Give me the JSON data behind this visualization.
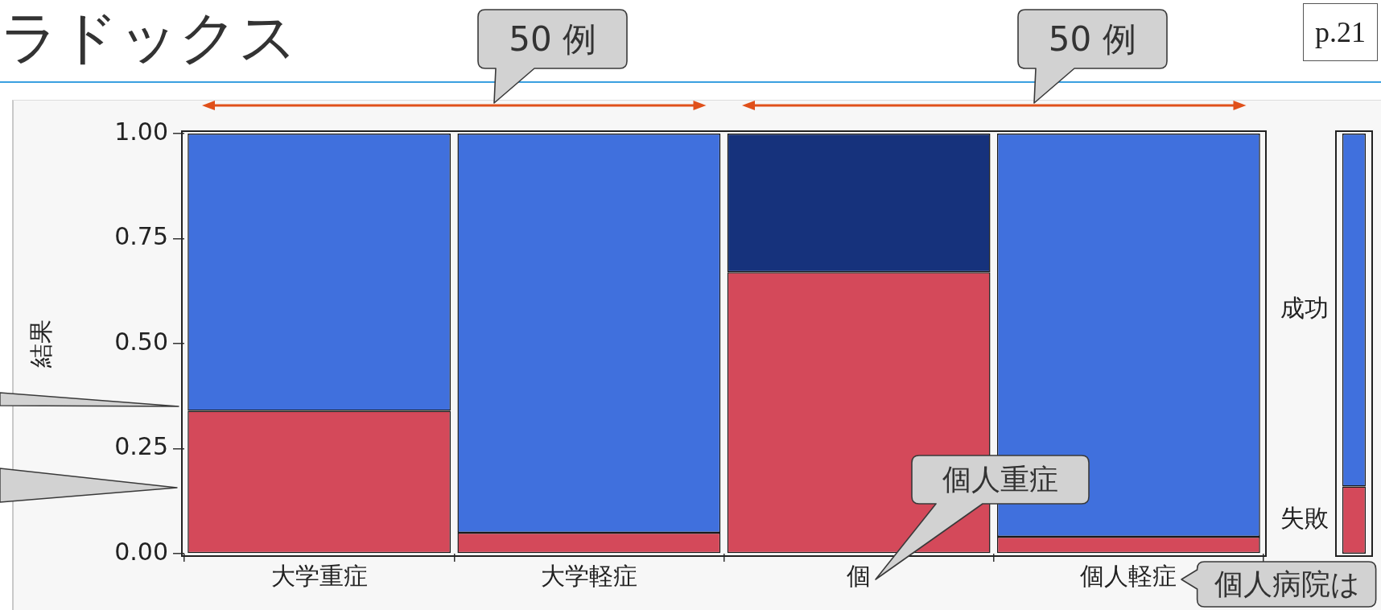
{
  "chart_data": [
    {
      "type": "bar",
      "title": "ラドックス",
      "ylabel": "結果",
      "stacked": true,
      "categories": [
        "大学重症",
        "大学軽症",
        "個",
        "個人軽症"
      ],
      "series": [
        {
          "color": "#d4495a",
          "values": [
            0.34,
            0.05,
            0.67,
            0.04
          ]
        },
        {
          "colors": [
            "#4070dd",
            "#4070dd",
            "#16327c",
            "#4070dd"
          ],
          "values": [
            0.66,
            0.95,
            0.33,
            0.96
          ]
        }
      ],
      "ylim": [
        0,
        1
      ],
      "yticks": [
        {
          "value": 0,
          "label": "0.00"
        },
        {
          "value": 0.25,
          "label": "0.25"
        },
        {
          "value": 0.5,
          "label": "0.50"
        },
        {
          "value": 0.75,
          "label": "0.75"
        },
        {
          "value": 1,
          "label": "1.00"
        }
      ],
      "annotations": [
        "p.21",
        "50 例",
        "50 例",
        "個人重症",
        "個人病院は"
      ]
    },
    {
      "type": "bar",
      "stacked": true,
      "categories": [
        null
      ],
      "series": [
        {
          "name": "失敗",
          "color": "#d4495a",
          "values": [
            0.16
          ]
        },
        {
          "name": "成功",
          "color": "#4070dd",
          "values": [
            0.84
          ]
        }
      ],
      "ylim": [
        0,
        1
      ],
      "tick_labels": false
    }
  ]
}
